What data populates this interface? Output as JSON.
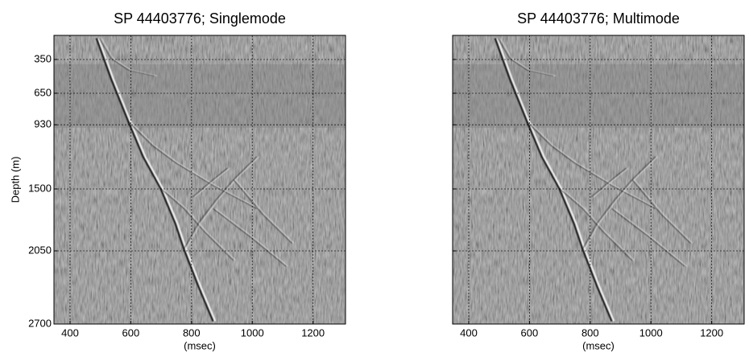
{
  "chart_data": [
    {
      "type": "image",
      "title": "SP 44403776; Singlemode",
      "xlabel": "(msec)",
      "ylabel": "Depth (m)",
      "xlim": [
        347,
        1307
      ],
      "xticks": [
        400,
        600,
        800,
        1000,
        1200
      ],
      "ylim": [
        136,
        2700
      ],
      "y_inverted": true,
      "yticks": [
        350,
        650,
        930,
        1500,
        2050,
        2700
      ],
      "ytick_labels": true,
      "grid": true
    },
    {
      "type": "image",
      "title": "SP 44403776; Multimode",
      "xlabel": "(msec)",
      "xlim": [
        347,
        1307
      ],
      "xticks": [
        400,
        600,
        800,
        1000,
        1200
      ],
      "ylim": [
        136,
        2700
      ],
      "y_inverted": true,
      "yticks": [
        350,
        650,
        930,
        1500,
        2050,
        2700
      ],
      "ytick_labels": false,
      "grid": true
    }
  ]
}
